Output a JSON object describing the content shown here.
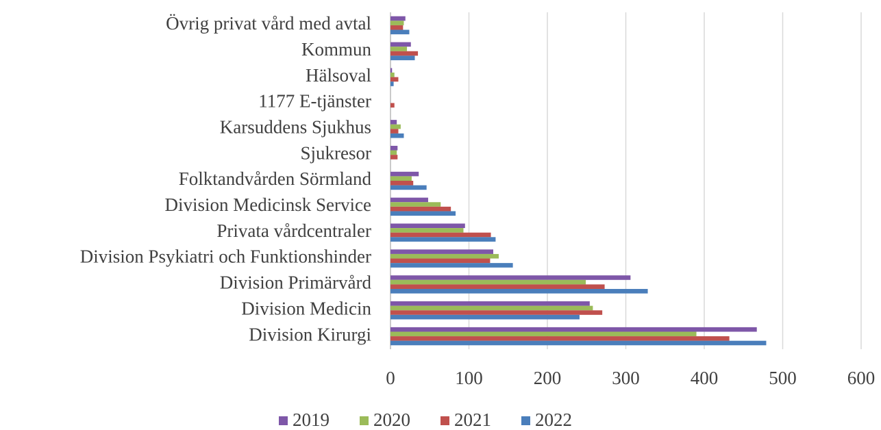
{
  "chart_data": {
    "type": "hbar",
    "categories": [
      "Övrig privat vård med avtal",
      "Kommun",
      "Hälsoval",
      "1177 E-tjänster",
      "Karsuddens Sjukhus",
      "Sjukresor",
      "Folktandvården Sörmland",
      "Division Medicinsk Service",
      "Privata vårdcentraler",
      "Division Psykiatri och Funktionshinder",
      "Division Primärvård",
      "Division Medicin",
      "Division Kirurgi"
    ],
    "series": [
      {
        "name": "2019",
        "color": "#7e57a8",
        "values": [
          19,
          26,
          2,
          0,
          8,
          9,
          36,
          48,
          95,
          131,
          306,
          254,
          467
        ]
      },
      {
        "name": "2020",
        "color": "#9bbb59",
        "values": [
          17,
          21,
          5,
          0,
          13,
          8,
          27,
          64,
          93,
          138,
          249,
          258,
          390
        ]
      },
      {
        "name": "2021",
        "color": "#c0504d",
        "values": [
          16,
          35,
          10,
          5,
          10,
          9,
          29,
          77,
          128,
          127,
          273,
          270,
          432
        ]
      },
      {
        "name": "2022",
        "color": "#4a7ebb",
        "values": [
          24,
          31,
          4,
          0,
          17,
          0,
          46,
          83,
          134,
          156,
          328,
          241,
          479
        ]
      }
    ],
    "xlim": [
      0,
      600
    ],
    "xticks": [
      0,
      100,
      200,
      300,
      400,
      500,
      600
    ],
    "grid": true,
    "legend": "bottom"
  }
}
